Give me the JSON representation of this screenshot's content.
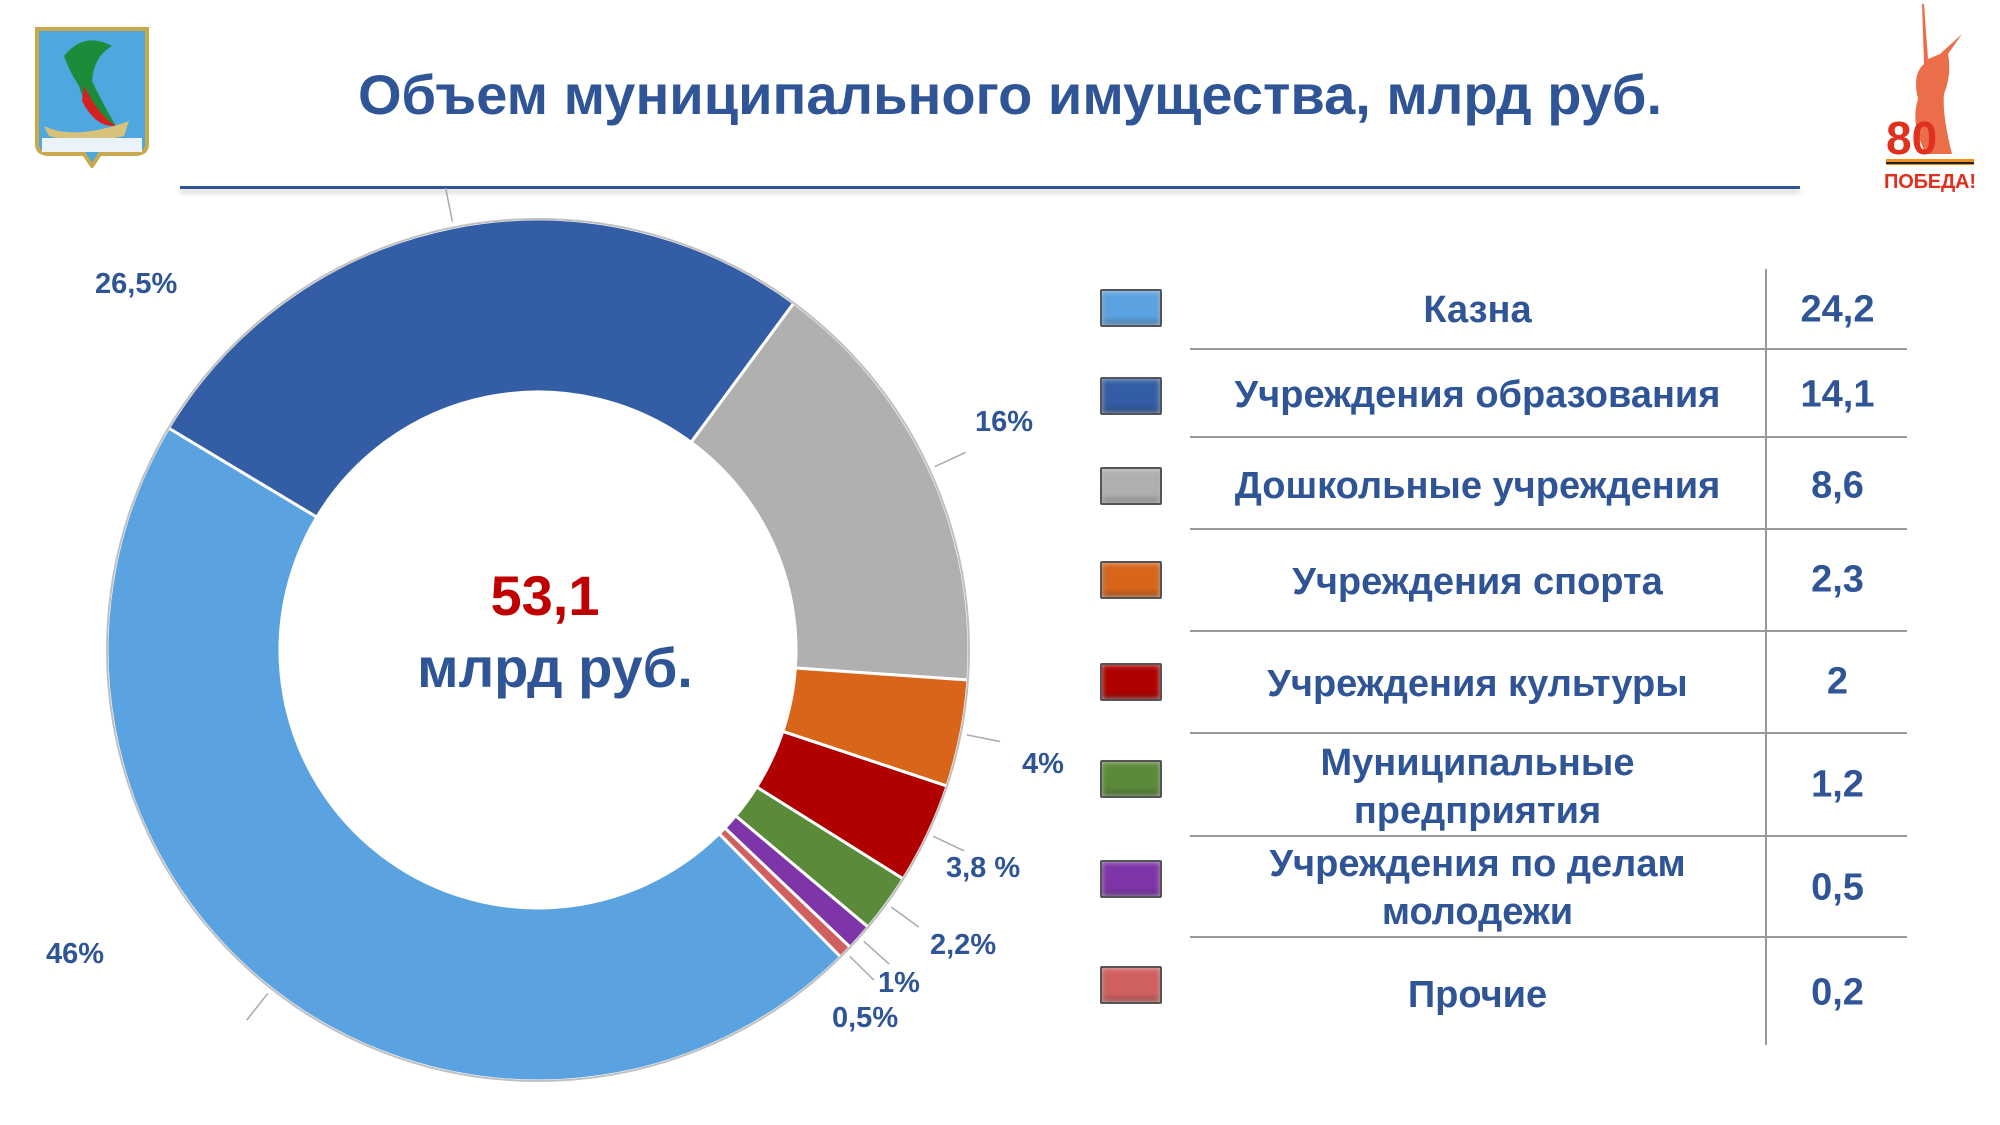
{
  "title": "Объем муниципального имущества, млрд руб.",
  "logos": {
    "left": "coat-of-arms",
    "right": "80 ПОБЕДА!"
  },
  "chart_data": {
    "type": "pie",
    "subtype": "donut",
    "title": "Объем муниципального имущества, млрд руб.",
    "center_label": {
      "value": "53,1",
      "unit": "млрд руб."
    },
    "categories": [
      "Казна",
      "Учреждения образования",
      "Дошкольные учреждения",
      "Учреждения спорта",
      "Учреждения культуры",
      "Муниципальные предприятия",
      "Учреждения по делам молодежи",
      "Прочие"
    ],
    "values": [
      24.2,
      14.1,
      8.6,
      2.3,
      2,
      1.2,
      0.5,
      0.2
    ],
    "value_labels": [
      "24,2",
      "14,1",
      "8,6",
      "2,3",
      "2",
      "1,2",
      "0,5",
      "0,2"
    ],
    "percents": [
      46,
      26.5,
      16,
      4,
      3.8,
      2.2,
      1,
      0.5
    ],
    "percent_labels": [
      "46%",
      "26,5%",
      "16%",
      "4%",
      "3,8 %",
      "2,2%",
      "1%",
      "0,5%"
    ],
    "colors": [
      "#5BA3E0",
      "#335EA5",
      "#B0B0B0",
      "#D8651A",
      "#B00000",
      "#5B8A3A",
      "#7E35A8",
      "#D06060"
    ],
    "legend": "right"
  }
}
